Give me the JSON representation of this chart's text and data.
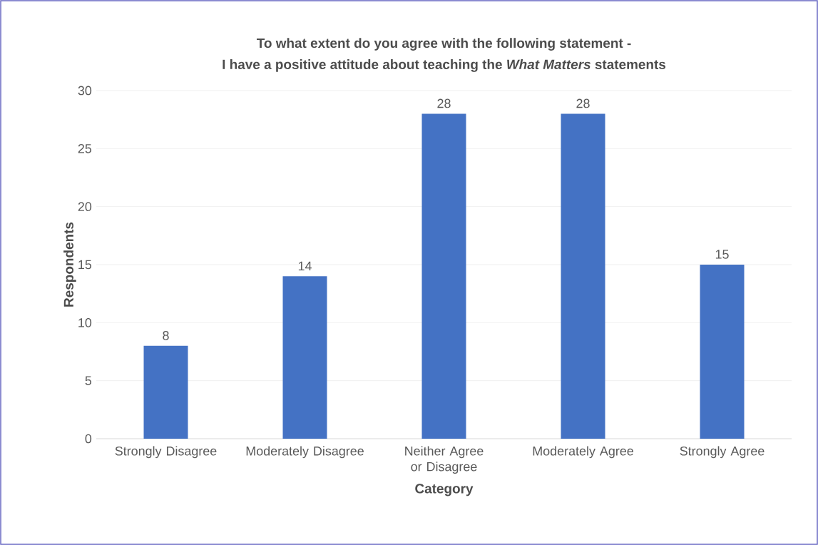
{
  "chart_data": {
    "type": "bar",
    "title": "To what extent do you agree with the following statement -\nI have a positive attitude about teaching the *What Matters* statements",
    "xlabel": "Category",
    "ylabel": "Respondents",
    "categories": [
      "Strongly Disagree",
      "Moderately Disagree",
      "Neither Agree or Disagree",
      "Moderately Agree",
      "Strongly Agree"
    ],
    "values": [
      8,
      14,
      28,
      28,
      15
    ],
    "color": "#4472c4",
    "ylim": [
      0,
      30
    ],
    "yticks": [
      0,
      5,
      10,
      15,
      20,
      25,
      30
    ],
    "grid": "y",
    "data_labels": true
  }
}
